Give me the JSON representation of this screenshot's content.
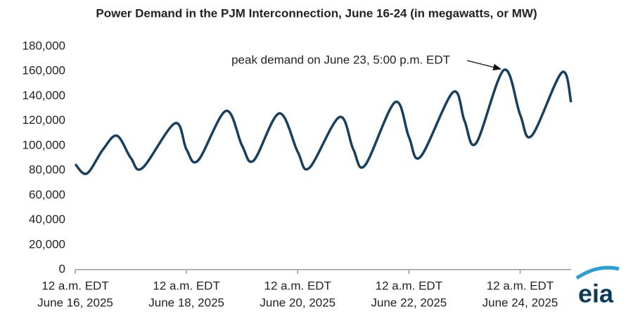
{
  "chart_data": {
    "type": "line",
    "title": "Power Demand in the PJM Interconnection, June 16-24 (in megawatts, or MW)",
    "annotation": "peak demand on June 23, 5:00 p.m. EDT",
    "logo": "eia",
    "x": [
      "2025-06-16T00:00",
      "2025-06-16T05:00",
      "2025-06-16T12:00",
      "2025-06-16T18:00",
      "2025-06-17T00:00",
      "2025-06-17T05:00",
      "2025-06-17T19:00",
      "2025-06-18T00:00",
      "2025-06-18T05:00",
      "2025-06-18T17:00",
      "2025-06-19T00:00",
      "2025-06-19T05:00",
      "2025-06-19T16:00",
      "2025-06-20T00:00",
      "2025-06-20T05:00",
      "2025-06-20T18:00",
      "2025-06-21T00:00",
      "2025-06-21T05:00",
      "2025-06-21T18:00",
      "2025-06-22T00:00",
      "2025-06-22T05:00",
      "2025-06-22T19:00",
      "2025-06-23T00:00",
      "2025-06-23T05:00",
      "2025-06-23T17:00",
      "2025-06-24T00:00",
      "2025-06-24T05:00",
      "2025-06-24T18:00",
      "2025-06-24T22:00"
    ],
    "series": [
      {
        "name": "Power demand",
        "color": "#173f5f",
        "values": [
          85000,
          77500,
          97000,
          108000,
          90000,
          82000,
          118000,
          97000,
          88000,
          128000,
          100000,
          88000,
          126000,
          95000,
          82000,
          123000,
          97000,
          84000,
          135000,
          107000,
          91000,
          143000,
          120000,
          102000,
          161000,
          125000,
          108000,
          159000,
          135000
        ]
      }
    ],
    "xlim": [
      "2025-06-16T00:00",
      "2025-06-24T22:00"
    ],
    "xticks": [
      {
        "value": "2025-06-16T00:00",
        "label": [
          "12 a.m. EDT",
          "June 16, 2025"
        ]
      },
      {
        "value": "2025-06-18T00:00",
        "label": [
          "12 a.m. EDT",
          "June 18, 2025"
        ]
      },
      {
        "value": "2025-06-20T00:00",
        "label": [
          "12 a.m. EDT",
          "June 20, 2025"
        ]
      },
      {
        "value": "2025-06-22T00:00",
        "label": [
          "12 a.m. EDT",
          "June 22, 2025"
        ]
      },
      {
        "value": "2025-06-24T00:00",
        "label": [
          "12 a.m. EDT",
          "June 24, 2025"
        ]
      }
    ],
    "ylim": [
      0,
      180000
    ],
    "yticks": [
      0,
      {
        "value": 20000,
        "label": "20,000"
      },
      {
        "value": 40000,
        "label": "40,000"
      },
      {
        "value": 60000,
        "label": "60,000"
      },
      {
        "value": 80000,
        "label": "80,000"
      },
      {
        "value": 100000,
        "label": "100,000"
      },
      {
        "value": 120000,
        "label": "120,000"
      },
      {
        "value": 140000,
        "label": "140,000"
      },
      {
        "value": 160000,
        "label": "160,000"
      },
      {
        "value": 180000,
        "label": "180,000"
      }
    ]
  }
}
